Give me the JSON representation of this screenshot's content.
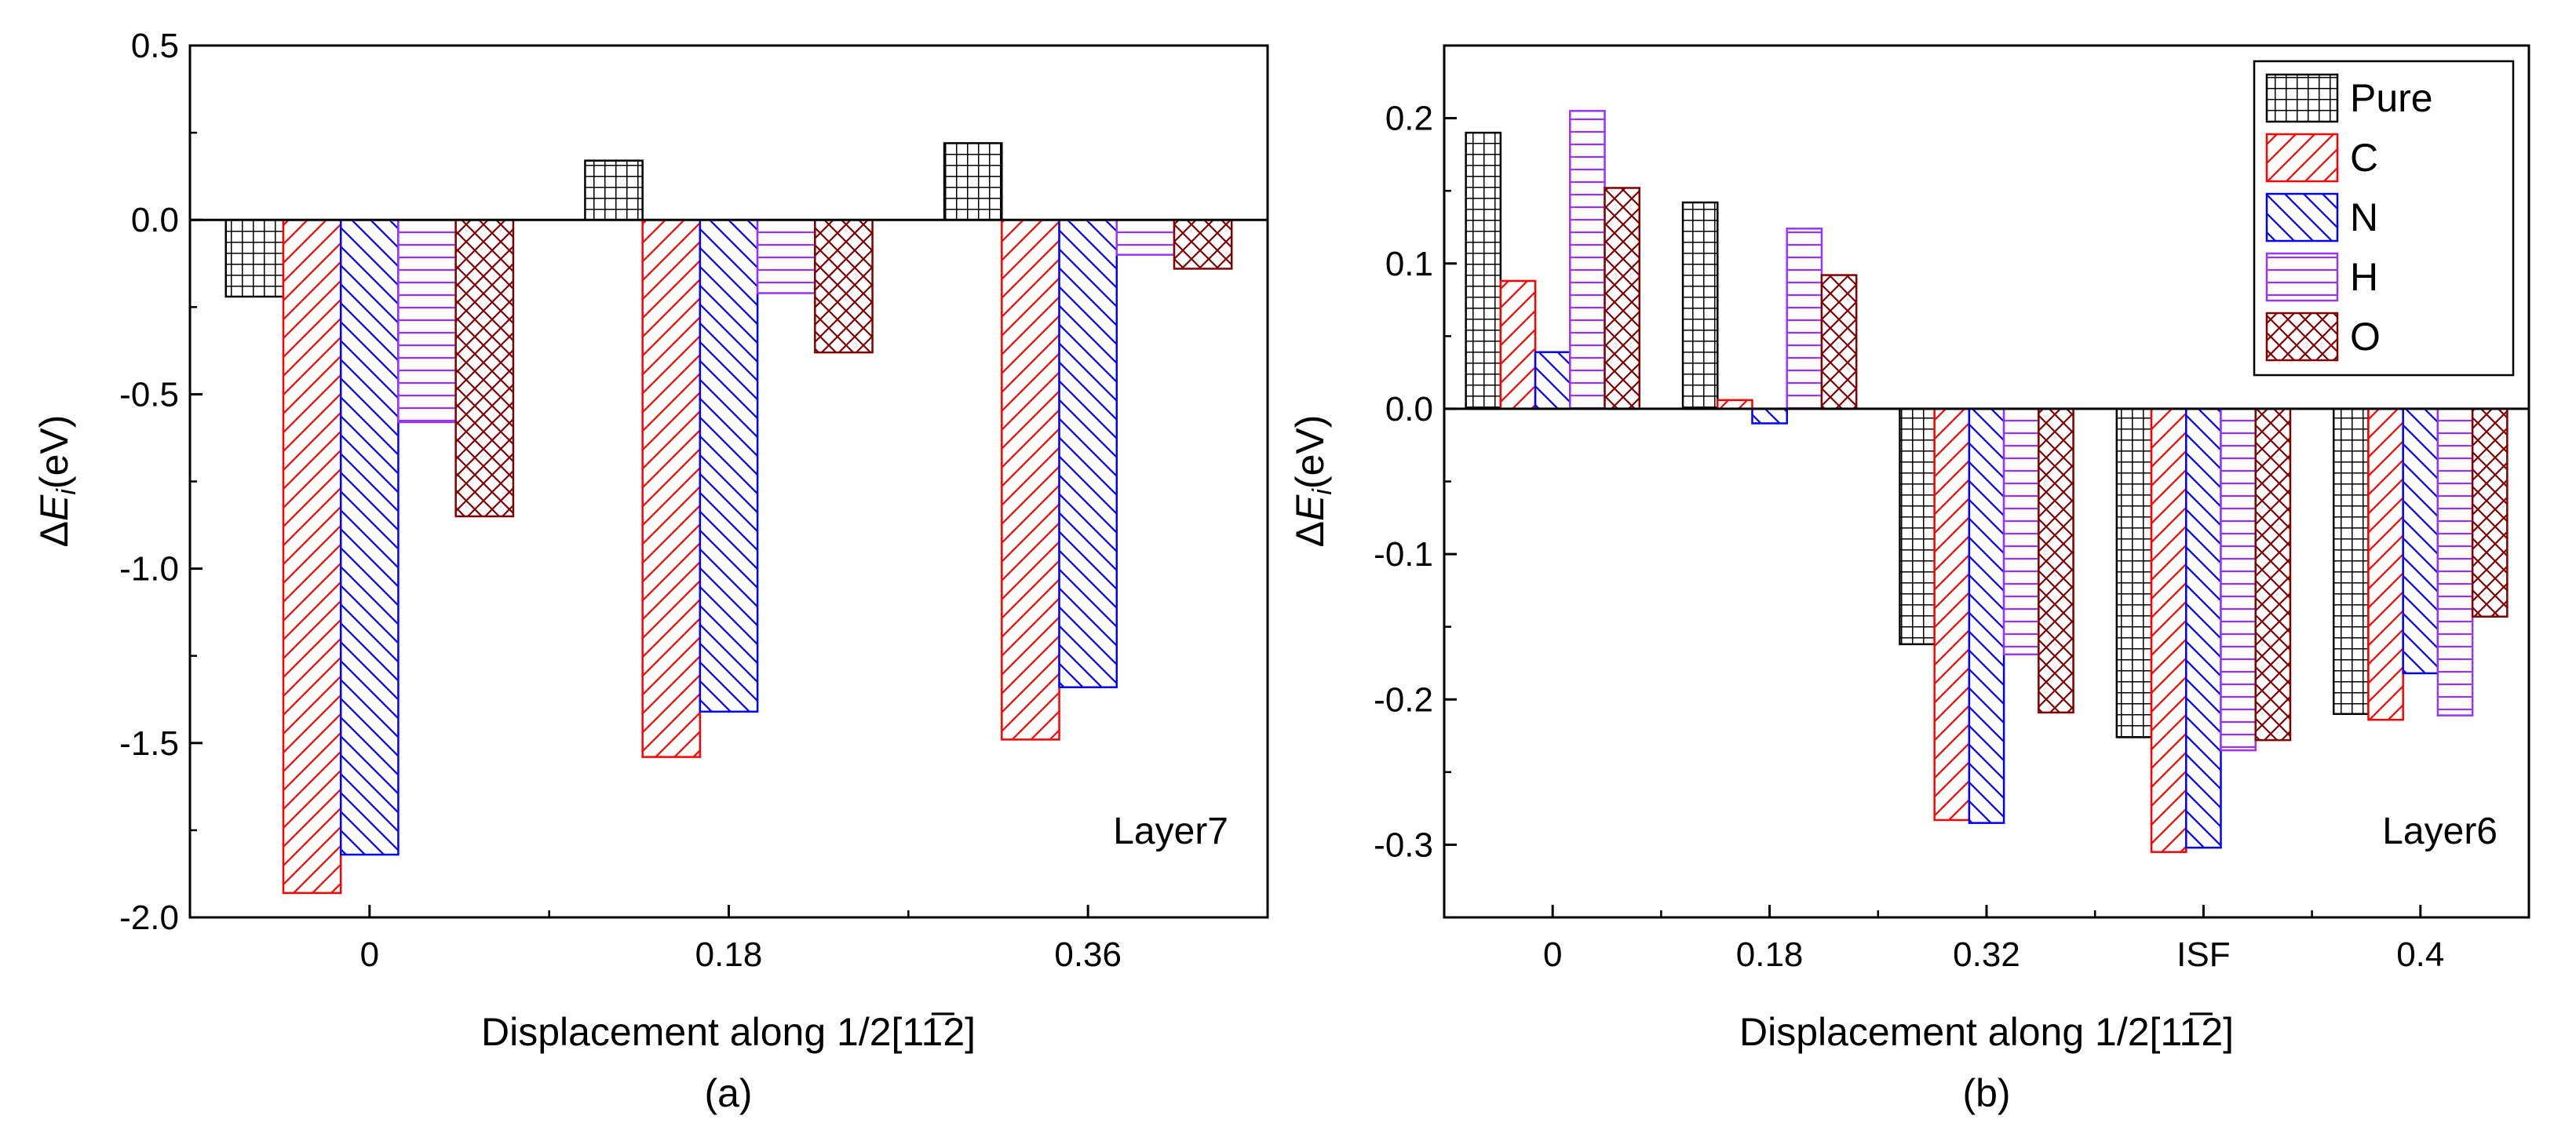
{
  "colors": {
    "Pure": "#000000",
    "C": "#ff0000",
    "N": "#0000ff",
    "H": "#9933ff",
    "O": "#800000"
  },
  "chart_data": [
    {
      "type": "bar",
      "id": "a",
      "subcaption": "(a)",
      "layer_label": "Layer7",
      "xlabel": "Displacement along 1/2[11̅2]",
      "ylabel_prefix": "Δ",
      "ylabel_var": "E",
      "ylabel_sub": "i",
      "ylabel_suffix": "(eV)",
      "ylim": [
        -2.0,
        0.5
      ],
      "yticks": [
        0.5,
        0.0,
        -0.5,
        -1.0,
        -1.5,
        -2.0
      ],
      "ytick_labels": [
        "0.5",
        "0.0",
        "-0.5",
        "-1.0",
        "-1.5",
        "-2.0"
      ],
      "categories": [
        "0",
        "0.18",
        "0.36"
      ],
      "series": [
        {
          "name": "Pure",
          "values": [
            -0.22,
            0.17,
            0.22
          ]
        },
        {
          "name": "C",
          "values": [
            -1.93,
            -1.54,
            -1.49
          ]
        },
        {
          "name": "N",
          "values": [
            -1.82,
            -1.41,
            -1.34
          ]
        },
        {
          "name": "H",
          "values": [
            -0.58,
            -0.21,
            -0.1
          ]
        },
        {
          "name": "O",
          "values": [
            -0.85,
            -0.38,
            -0.14
          ]
        }
      ]
    },
    {
      "type": "bar",
      "id": "b",
      "subcaption": "(b)",
      "layer_label": "Layer6",
      "xlabel": "Displacement along 1/2[11̅2]",
      "ylabel_prefix": "Δ",
      "ylabel_var": "E",
      "ylabel_sub": "i",
      "ylabel_suffix": "(eV)",
      "ylim": [
        -0.35,
        0.25
      ],
      "yticks": [
        0.2,
        0.1,
        0.0,
        -0.1,
        -0.2,
        -0.3
      ],
      "ytick_labels": [
        "0.2",
        "0.1",
        "0.0",
        "-0.1",
        "-0.2",
        "-0.3"
      ],
      "categories": [
        "0",
        "0.18",
        "0.32",
        "ISF",
        "0.4"
      ],
      "legend": [
        "Pure",
        "C",
        "N",
        "H",
        "O"
      ],
      "legend_position": "top-right",
      "series": [
        {
          "name": "Pure",
          "values": [
            0.19,
            0.142,
            -0.162,
            -0.226,
            -0.21
          ]
        },
        {
          "name": "C",
          "values": [
            0.088,
            0.006,
            -0.283,
            -0.305,
            -0.214
          ]
        },
        {
          "name": "N",
          "values": [
            0.039,
            -0.01,
            -0.285,
            -0.302,
            -0.182
          ]
        },
        {
          "name": "H",
          "values": [
            0.205,
            0.124,
            -0.169,
            -0.235,
            -0.211
          ]
        },
        {
          "name": "O",
          "values": [
            0.152,
            0.092,
            -0.209,
            -0.228,
            -0.143
          ]
        }
      ]
    }
  ]
}
